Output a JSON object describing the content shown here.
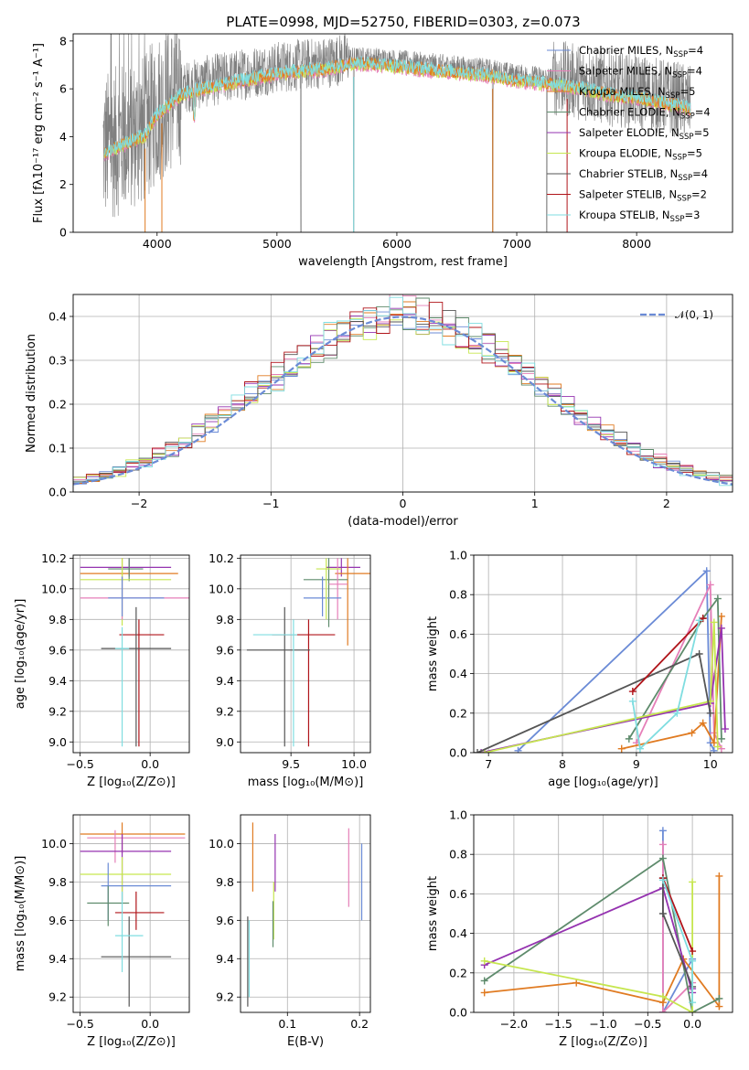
{
  "title": "PLATE=0998, MJD=52750, FIBERID=0303, z=0.073",
  "colors": {
    "chabrier_miles": "#6b8bd6",
    "salpeter_miles": "#e57fb8",
    "kroupa_miles": "#e07b22",
    "chabrier_elodie": "#5e8b6c",
    "salpeter_elodie": "#9533b0",
    "kroupa_elodie": "#c6e64f",
    "chabrier_stelib": "#555555",
    "salpeter_stelib": "#b0141a",
    "kroupa_stelib": "#7fdde0",
    "data": "#808080",
    "normal": "#6b8bd6"
  },
  "legend_entries": [
    {
      "pre": "Chabrier MILES, N",
      "sub": "SSP",
      "post": "=4"
    },
    {
      "pre": "Salpeter MILES, N",
      "sub": "SSP",
      "post": "=4"
    },
    {
      "pre": "Kroupa MILES, N",
      "sub": "SSP",
      "post": "=5"
    },
    {
      "pre": "Chabrier ELODIE, N",
      "sub": "SSP",
      "post": "=4"
    },
    {
      "pre": "Salpeter ELODIE, N",
      "sub": "SSP",
      "post": "=5"
    },
    {
      "pre": "Kroupa ELODIE, N",
      "sub": "SSP",
      "post": "=5"
    },
    {
      "pre": "Chabrier STELIB, N",
      "sub": "SSP",
      "post": "=4"
    },
    {
      "pre": "Salpeter STELIB, N",
      "sub": "SSP",
      "post": "=2"
    },
    {
      "pre": "Kroupa STELIB, N",
      "sub": "SSP",
      "post": "=3"
    }
  ],
  "chart_data": [
    {
      "id": "spectrum",
      "type": "line",
      "xlabel": "wavelength [Angstrom, rest frame]",
      "ylabel": "Flux [fλ10⁻¹⁷ erg cm⁻² s⁻¹ A⁻¹]",
      "xlim": [
        3300,
        8800
      ],
      "ylim": [
        0,
        8.3
      ],
      "xticks": [
        4000,
        5000,
        6000,
        7000,
        8000
      ],
      "xtick_labels": [
        "4000",
        "5000",
        "6000",
        "7000",
        "8000"
      ],
      "yticks": [
        0,
        2,
        4,
        6,
        8
      ],
      "ytick_labels": [
        "0",
        "2",
        "4",
        "6",
        "8"
      ],
      "continuum": {
        "x": [
          3550,
          3700,
          3900,
          4000,
          4200,
          4400,
          4600,
          4800,
          5000,
          5200,
          5400,
          5600,
          5800,
          6000,
          6200,
          6400,
          6600,
          6800,
          7000,
          7200,
          7400,
          7600,
          7800,
          8000,
          8200,
          8400,
          8450
        ],
        "y": [
          3.5,
          3.9,
          4.3,
          5.2,
          6.0,
          6.3,
          6.5,
          6.7,
          6.9,
          7.0,
          7.1,
          7.3,
          7.3,
          7.2,
          7.1,
          7.0,
          6.9,
          6.8,
          6.6,
          6.5,
          6.4,
          6.2,
          6.0,
          5.9,
          5.7,
          5.5,
          5.4
        ]
      },
      "legend_position": "upper right"
    },
    {
      "id": "residuals",
      "type": "histogram",
      "xlabel": "(data-model)/error",
      "ylabel": "Normed distribution",
      "xlim": [
        -2.5,
        2.5
      ],
      "ylim": [
        0,
        0.45
      ],
      "xticks": [
        -2,
        -1,
        0,
        1,
        2
      ],
      "xtick_labels": [
        "−2",
        "−1",
        "0",
        "1",
        "2"
      ],
      "yticks": [
        0,
        0.1,
        0.2,
        0.3,
        0.4
      ],
      "ytick_labels": [
        "0.0",
        "0.1",
        "0.2",
        "0.3",
        "0.4"
      ],
      "bin_width": 0.1,
      "grid": true,
      "legend_label": "𝒩(0, 1)",
      "legend_position": "upper right"
    },
    {
      "id": "age_vs_Z",
      "type": "scatter",
      "xlabel": "Z [log₁₀(Z/Z⊙)]",
      "ylabel": "age  [log₁₀(age/yr)]",
      "xlim": [
        -0.55,
        0.28
      ],
      "ylim": [
        8.93,
        10.22
      ],
      "xticks": [
        -0.5,
        0.0
      ],
      "xtick_labels": [
        "−0.5",
        "0.0"
      ],
      "yticks": [
        9.0,
        9.2,
        9.4,
        9.6,
        9.8,
        10.0,
        10.2
      ],
      "ytick_labels": [
        "9.0",
        "9.2",
        "9.4",
        "9.6",
        "9.8",
        "10.0",
        "10.2"
      ],
      "grid": true,
      "points": [
        {
          "s": "salpeter_elodie",
          "x": -0.15,
          "y": 10.14,
          "xe": [
            -0.5,
            0.15
          ],
          "ye": [
            10.08,
            10.2
          ]
        },
        {
          "s": "kroupa_miles",
          "x": -0.2,
          "y": 10.1,
          "xe": [
            -0.5,
            0.2
          ],
          "ye": [
            10.05,
            10.2
          ]
        },
        {
          "s": "chabrier_elodie",
          "x": -0.15,
          "y": 10.13,
          "xe": [
            -0.3,
            -0.05
          ],
          "ye": [
            10.05,
            10.2
          ]
        },
        {
          "s": "kroupa_elodie",
          "x": -0.2,
          "y": 10.06,
          "xe": [
            -0.5,
            0.15
          ],
          "ye": [
            9.76,
            10.2
          ]
        },
        {
          "s": "salpeter_miles",
          "x": -0.2,
          "y": 9.94,
          "xe": [
            -0.5,
            0.28
          ],
          "ye": [
            9.8,
            10.08
          ]
        },
        {
          "s": "chabrier_miles",
          "x": -0.2,
          "y": 9.94,
          "xe": [
            -0.3,
            0.1
          ],
          "ye": [
            9.82,
            10.08
          ]
        },
        {
          "s": "salpeter_stelib",
          "x": -0.08,
          "y": 9.7,
          "xe": [
            -0.22,
            0.1
          ],
          "ye": [
            8.97,
            9.8
          ]
        },
        {
          "s": "chabrier_stelib",
          "x": -0.1,
          "y": 9.61,
          "xe": [
            -0.35,
            0.15
          ],
          "ye": [
            8.97,
            9.88
          ]
        },
        {
          "s": "kroupa_stelib",
          "x": -0.2,
          "y": 9.61,
          "xe": [
            -0.25,
            -0.15
          ],
          "ye": [
            8.97,
            9.75
          ]
        }
      ]
    },
    {
      "id": "age_vs_mass",
      "type": "scatter",
      "xlabel": "mass [log₁₀(M/M⊙)]",
      "ylabel": "",
      "xlim": [
        9.1,
        10.13
      ],
      "ylim": [
        8.93,
        10.22
      ],
      "xticks": [
        9.5,
        10.0
      ],
      "xtick_labels": [
        "9.5",
        "10.0"
      ],
      "yticks": [
        9.0,
        9.2,
        9.4,
        9.6,
        9.8,
        10.0,
        10.2
      ],
      "ytick_labels": [
        "9.0",
        "9.2",
        "9.4",
        "9.6",
        "9.8",
        "10.0",
        "10.2"
      ],
      "grid": true,
      "points": [
        {
          "s": "salpeter_elodie",
          "x": 9.9,
          "y": 10.14,
          "xe": [
            9.78,
            10.05
          ],
          "ye": [
            10.08,
            10.2
          ]
        },
        {
          "s": "kroupa_miles",
          "x": 9.95,
          "y": 10.1,
          "xe": [
            9.85,
            10.13
          ],
          "ye": [
            9.63,
            10.2
          ]
        },
        {
          "s": "chabrier_elodie",
          "x": 9.8,
          "y": 10.06,
          "xe": [
            9.6,
            9.95
          ],
          "ye": [
            9.75,
            10.2
          ]
        },
        {
          "s": "salpeter_miles",
          "x": 9.87,
          "y": 10.03,
          "xe": [
            9.8,
            9.95
          ],
          "ye": [
            9.8,
            10.2
          ]
        },
        {
          "s": "chabrier_miles",
          "x": 9.75,
          "y": 9.94,
          "xe": [
            9.6,
            9.9
          ],
          "ye": [
            9.82,
            10.08
          ]
        },
        {
          "s": "kroupa_elodie",
          "x": 9.78,
          "y": 10.13,
          "xe": [
            9.7,
            9.9
          ],
          "ye": [
            9.8,
            10.2
          ]
        },
        {
          "s": "salpeter_stelib",
          "x": 9.64,
          "y": 9.7,
          "xe": [
            9.35,
            9.85
          ],
          "ye": [
            8.97,
            9.8
          ]
        },
        {
          "s": "chabrier_stelib",
          "x": 9.45,
          "y": 9.6,
          "xe": [
            9.15,
            9.65
          ],
          "ye": [
            8.97,
            9.88
          ]
        },
        {
          "s": "kroupa_stelib",
          "x": 9.52,
          "y": 9.7,
          "xe": [
            9.2,
            9.55
          ],
          "ye": [
            8.97,
            9.8
          ]
        }
      ]
    },
    {
      "id": "weight_vs_age",
      "type": "line",
      "xlabel": "age  [log₁₀(age/yr)]",
      "ylabel": "mass weight",
      "xlim": [
        6.8,
        10.3
      ],
      "ylim": [
        0,
        1.0
      ],
      "xticks": [
        7,
        8,
        9,
        10
      ],
      "xtick_labels": [
        "7",
        "8",
        "9",
        "10"
      ],
      "yticks": [
        0,
        0.2,
        0.4,
        0.6,
        0.8,
        1.0
      ],
      "ytick_labels": [
        "0.0",
        "0.2",
        "0.4",
        "0.6",
        "0.8",
        "1.0"
      ],
      "grid": true,
      "series": [
        {
          "s": "chabrier_miles",
          "x": [
            7.4,
            9.95,
            10.0,
            10.05
          ],
          "y": [
            0.01,
            0.92,
            0.05,
            0.01
          ]
        },
        {
          "s": "salpeter_miles",
          "x": [
            9.0,
            10.0,
            10.05,
            10.15
          ],
          "y": [
            0.05,
            0.85,
            0.1,
            0.02
          ]
        },
        {
          "s": "kroupa_miles",
          "x": [
            8.8,
            9.75,
            9.9,
            10.05,
            10.15
          ],
          "y": [
            0.02,
            0.1,
            0.15,
            0.05,
            0.69
          ]
        },
        {
          "s": "chabrier_elodie",
          "x": [
            8.9,
            9.9,
            10.1,
            10.15
          ],
          "y": [
            0.07,
            0.68,
            0.78,
            0.07
          ]
        },
        {
          "s": "salpeter_elodie",
          "x": [
            6.9,
            10.0,
            10.15,
            10.2
          ],
          "y": [
            0.0,
            0.25,
            0.63,
            0.12
          ]
        },
        {
          "s": "kroupa_elodie",
          "x": [
            6.95,
            10.0,
            10.05,
            10.1
          ],
          "y": [
            0.0,
            0.26,
            0.66,
            0.03
          ]
        },
        {
          "s": "chabrier_stelib",
          "x": [
            6.85,
            9.85,
            10.0
          ],
          "y": [
            0.0,
            0.5,
            0.2
          ]
        },
        {
          "s": "salpeter_stelib",
          "x": [
            8.95,
            9.9
          ],
          "y": [
            0.31,
            0.68
          ]
        },
        {
          "s": "kroupa_stelib",
          "x": [
            8.95,
            9.05,
            9.55,
            9.85
          ],
          "y": [
            0.26,
            0.02,
            0.2,
            0.67
          ]
        }
      ]
    },
    {
      "id": "mass_vs_Z",
      "type": "scatter",
      "xlabel": "Z [log₁₀(Z/Z⊙)]",
      "ylabel": "mass [log₁₀(M/M⊙)]",
      "xlim": [
        -0.55,
        0.28
      ],
      "ylim": [
        9.12,
        10.15
      ],
      "xticks": [
        -0.5,
        0.0
      ],
      "xtick_labels": [
        "−0.5",
        "0.0"
      ],
      "yticks": [
        9.2,
        9.4,
        9.6,
        9.8,
        10.0
      ],
      "ytick_labels": [
        "9.2",
        "9.4",
        "9.6",
        "9.8",
        "10.0"
      ],
      "grid": true,
      "points": [
        {
          "s": "kroupa_miles",
          "x": -0.2,
          "y": 10.05,
          "xe": [
            -0.5,
            0.25
          ],
          "ye": [
            9.95,
            10.11
          ]
        },
        {
          "s": "salpeter_miles",
          "x": -0.25,
          "y": 10.03,
          "xe": [
            -0.45,
            0.25
          ],
          "ye": [
            9.9,
            10.07
          ]
        },
        {
          "s": "salpeter_elodie",
          "x": -0.2,
          "y": 9.96,
          "xe": [
            -0.5,
            0.15
          ],
          "ye": [
            9.7,
            10.05
          ]
        },
        {
          "s": "kroupa_elodie",
          "x": -0.2,
          "y": 9.84,
          "xe": [
            -0.5,
            0.15
          ],
          "ye": [
            9.7,
            9.93
          ]
        },
        {
          "s": "chabrier_miles",
          "x": -0.3,
          "y": 9.78,
          "xe": [
            -0.35,
            0.15
          ],
          "ye": [
            9.6,
            9.9
          ]
        },
        {
          "s": "chabrier_elodie",
          "x": -0.3,
          "y": 9.69,
          "xe": [
            -0.45,
            -0.15
          ],
          "ye": [
            9.57,
            9.78
          ]
        },
        {
          "s": "salpeter_stelib",
          "x": -0.1,
          "y": 9.64,
          "xe": [
            -0.25,
            0.1
          ],
          "ye": [
            9.55,
            9.75
          ]
        },
        {
          "s": "chabrier_stelib",
          "x": -0.15,
          "y": 9.41,
          "xe": [
            -0.35,
            0.15
          ],
          "ye": [
            9.15,
            9.62
          ]
        },
        {
          "s": "kroupa_stelib",
          "x": -0.2,
          "y": 9.52,
          "xe": [
            -0.25,
            -0.05
          ],
          "ye": [
            9.33,
            9.75
          ]
        }
      ]
    },
    {
      "id": "mass_vs_ebv",
      "type": "errorbar",
      "xlabel": "E(B-V)",
      "ylabel": "",
      "xlim": [
        0.035,
        0.215
      ],
      "ylim": [
        9.12,
        10.15
      ],
      "xticks": [
        0.1,
        0.2
      ],
      "xtick_labels": [
        "0.1",
        "0.2"
      ],
      "yticks": [
        9.2,
        9.4,
        9.6,
        9.8,
        10.0
      ],
      "ytick_labels": [
        "9.2",
        "9.4",
        "9.6",
        "9.8",
        "10.0"
      ],
      "grid": true,
      "points": [
        {
          "s": "chabrier_stelib",
          "x": 0.045,
          "ye": [
            9.15,
            9.62
          ]
        },
        {
          "s": "kroupa_stelib",
          "x": 0.047,
          "ye": [
            9.2,
            9.6
          ]
        },
        {
          "s": "kroupa_miles",
          "x": 0.052,
          "ye": [
            9.75,
            10.11
          ]
        },
        {
          "s": "salpeter_elodie",
          "x": 0.083,
          "ye": [
            9.75,
            10.05
          ]
        },
        {
          "s": "kroupa_elodie",
          "x": 0.081,
          "ye": [
            9.5,
            9.8
          ]
        },
        {
          "s": "chabrier_elodie",
          "x": 0.08,
          "ye": [
            9.46,
            9.7
          ]
        },
        {
          "s": "salpeter_miles",
          "x": 0.185,
          "ye": [
            9.67,
            10.08
          ]
        },
        {
          "s": "chabrier_miles",
          "x": 0.203,
          "ye": [
            9.6,
            10.0
          ]
        }
      ]
    },
    {
      "id": "weight_vs_Z",
      "type": "line",
      "xlabel": "Z [log₁₀(Z/Z⊙)]",
      "ylabel": "mass weight",
      "xlim": [
        -2.45,
        0.45
      ],
      "ylim": [
        0,
        1.0
      ],
      "xticks": [
        -2.0,
        -1.5,
        -1.0,
        -0.5,
        0.0
      ],
      "xtick_labels": [
        "−2.0",
        "−1.5",
        "−1.0",
        "−0.5",
        "0.0"
      ],
      "yticks": [
        0,
        0.2,
        0.4,
        0.6,
        0.8,
        1.0
      ],
      "ytick_labels": [
        "0.0",
        "0.2",
        "0.4",
        "0.6",
        "0.8",
        "1.0"
      ],
      "grid": true,
      "series": [
        {
          "s": "chabrier_miles",
          "x": [
            -0.33,
            -0.33,
            0.0,
            0.0
          ],
          "y": [
            0.92,
            0.0,
            0.27,
            0.0
          ]
        },
        {
          "s": "salpeter_miles",
          "x": [
            -0.33,
            -0.33,
            0.0
          ],
          "y": [
            0.85,
            0.0,
            0.15
          ]
        },
        {
          "s": "kroupa_miles",
          "x": [
            -2.33,
            -1.3,
            -0.33,
            -0.1,
            0.3,
            0.3
          ],
          "y": [
            0.1,
            0.15,
            0.05,
            0.27,
            0.03,
            0.69
          ]
        },
        {
          "s": "chabrier_elodie",
          "x": [
            -2.33,
            -0.33,
            0.0,
            0.3
          ],
          "y": [
            0.16,
            0.78,
            0.0,
            0.07
          ]
        },
        {
          "s": "salpeter_elodie",
          "x": [
            -2.33,
            -0.33,
            0.0,
            0.0
          ],
          "y": [
            0.24,
            0.63,
            0.1,
            0.12
          ]
        },
        {
          "s": "kroupa_elodie",
          "x": [
            -2.33,
            -0.33,
            0.0,
            0.0
          ],
          "y": [
            0.26,
            0.08,
            0.0,
            0.66
          ]
        },
        {
          "s": "chabrier_stelib",
          "x": [
            -0.33,
            -0.33,
            0.0
          ],
          "y": [
            0.68,
            0.5,
            0.13
          ]
        },
        {
          "s": "salpeter_stelib",
          "x": [
            -0.33,
            0.0
          ],
          "y": [
            0.68,
            0.31
          ]
        },
        {
          "s": "kroupa_stelib",
          "x": [
            -0.33,
            0.0,
            0.0
          ],
          "y": [
            0.67,
            0.26,
            0.05
          ]
        }
      ]
    }
  ]
}
